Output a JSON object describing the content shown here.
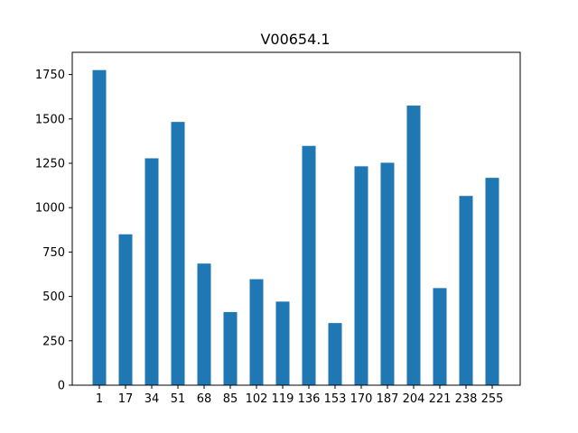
{
  "chart_data": {
    "type": "bar",
    "title": "V00654.1",
    "xlabel": "",
    "ylabel": "",
    "categories": [
      "1",
      "17",
      "34",
      "51",
      "68",
      "85",
      "102",
      "119",
      "136",
      "153",
      "170",
      "187",
      "204",
      "221",
      "238",
      "255"
    ],
    "values": [
      1775,
      850,
      1278,
      1483,
      685,
      412,
      597,
      471,
      1348,
      350,
      1233,
      1253,
      1575,
      547,
      1066,
      1168
    ],
    "ylim": [
      0,
      1875
    ],
    "yticks": [
      0,
      250,
      500,
      750,
      1000,
      1250,
      1500,
      1750
    ],
    "grid": false,
    "bar_color": "#1f77b4"
  }
}
